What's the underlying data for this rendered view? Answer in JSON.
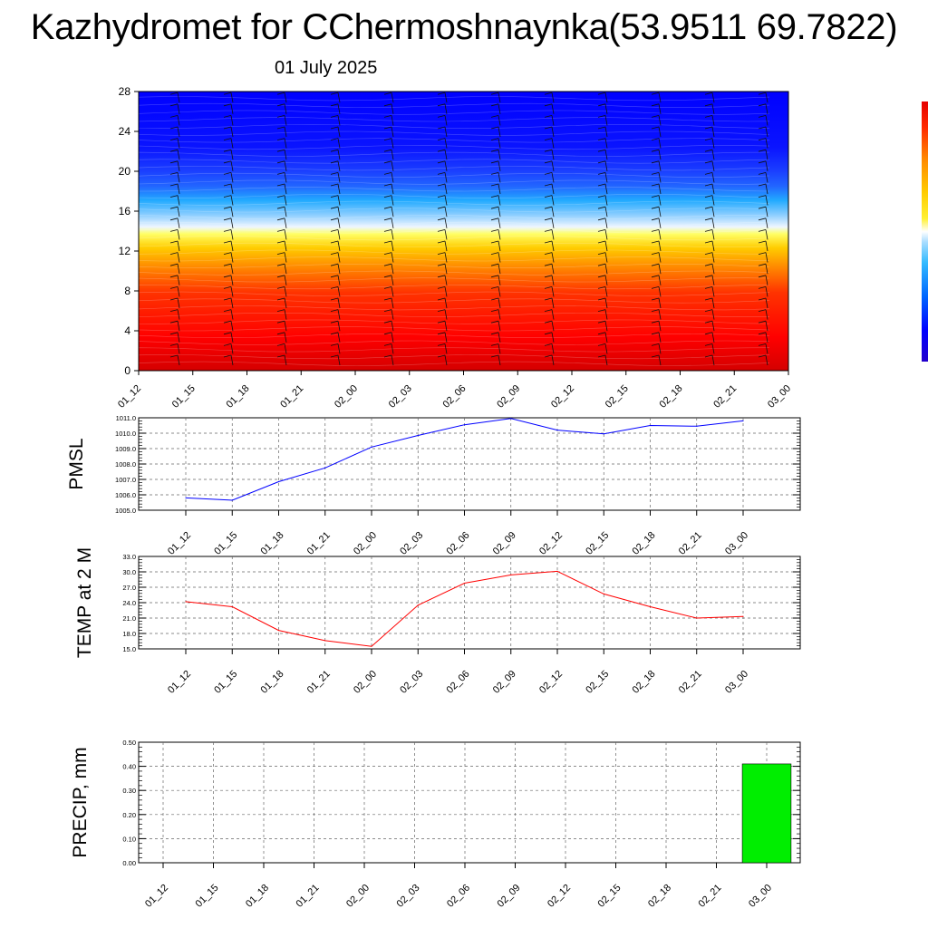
{
  "header": {
    "title": "Kazhydromet for CChermoshnaynka(53.9511 69.7822)",
    "subtitle": "01 July 2025"
  },
  "time_labels": [
    "01_12",
    "01_15",
    "01_18",
    "01_21",
    "02_00",
    "02_03",
    "02_06",
    "02_09",
    "02_12",
    "02_15",
    "02_18",
    "02_21",
    "03_00"
  ],
  "chart_data": [
    {
      "type": "heatmap",
      "title": "",
      "ylim": [
        0,
        28
      ],
      "yticks": [
        "0",
        "4",
        "8",
        "12",
        "16",
        "20",
        "24",
        "28"
      ],
      "categories": [
        "01_12",
        "01_15",
        "01_18",
        "01_21",
        "02_00",
        "02_03",
        "02_06",
        "02_09",
        "02_12",
        "02_15",
        "02_18",
        "02_21",
        "03_00"
      ],
      "colorbar": [
        "#e60000",
        "#ff2a00",
        "#ff6600",
        "#ff9900",
        "#ffcc00",
        "#fff033",
        "#ffffff",
        "#aaddff",
        "#33bbff",
        "#0088ff",
        "#0044ff",
        "#0000ff",
        "#2200cc"
      ],
      "note_units": "wind barbs overlaid"
    },
    {
      "type": "line",
      "ylabel": "PMSL",
      "ylim": [
        1005.0,
        1011.0
      ],
      "yticks": [
        "1005.0",
        "1006.0",
        "1007.0",
        "1008.0",
        "1009.0",
        "1010.0",
        "1011.0"
      ],
      "x": [
        "01_12",
        "01_15",
        "01_18",
        "01_21",
        "02_00",
        "02_03",
        "02_06",
        "02_09",
        "02_12",
        "02_15",
        "02_18",
        "02_21",
        "03_00"
      ],
      "series": [
        {
          "values": [
            1005.8,
            1005.65,
            1006.85,
            1007.75,
            1009.1,
            1009.85,
            1010.55,
            1010.95,
            1010.2,
            1009.95,
            1010.5,
            1010.45,
            1010.8
          ],
          "color": "#0000ff"
        }
      ]
    },
    {
      "type": "line",
      "ylabel": "TEMP at 2 M",
      "ylim": [
        15.0,
        33.0
      ],
      "yticks": [
        "15.0",
        "18.0",
        "21.0",
        "24.0",
        "27.0",
        "30.0",
        "33.0"
      ],
      "x": [
        "01_12",
        "01_15",
        "01_18",
        "01_21",
        "02_00",
        "02_03",
        "02_06",
        "02_09",
        "02_12",
        "02_15",
        "02_18",
        "02_21",
        "03_00"
      ],
      "series": [
        {
          "values": [
            24.2,
            23.2,
            18.6,
            16.6,
            15.5,
            23.5,
            27.8,
            29.4,
            30.1,
            25.7,
            23.2,
            21.0,
            21.3
          ],
          "color": "#ff0000"
        }
      ]
    },
    {
      "type": "bar",
      "ylabel": "PRECIP, mm",
      "ylim": [
        0.0,
        0.5
      ],
      "yticks": [
        "0.00",
        "0.10",
        "0.20",
        "0.30",
        "0.40",
        "0.50"
      ],
      "categories": [
        "01_12",
        "01_15",
        "01_18",
        "01_21",
        "02_00",
        "02_03",
        "02_06",
        "02_09",
        "02_12",
        "02_15",
        "02_18",
        "02_21",
        "03_00"
      ],
      "values": [
        0,
        0,
        0,
        0,
        0,
        0,
        0,
        0,
        0,
        0,
        0,
        0,
        0.41
      ],
      "color": "#00ee00"
    }
  ]
}
